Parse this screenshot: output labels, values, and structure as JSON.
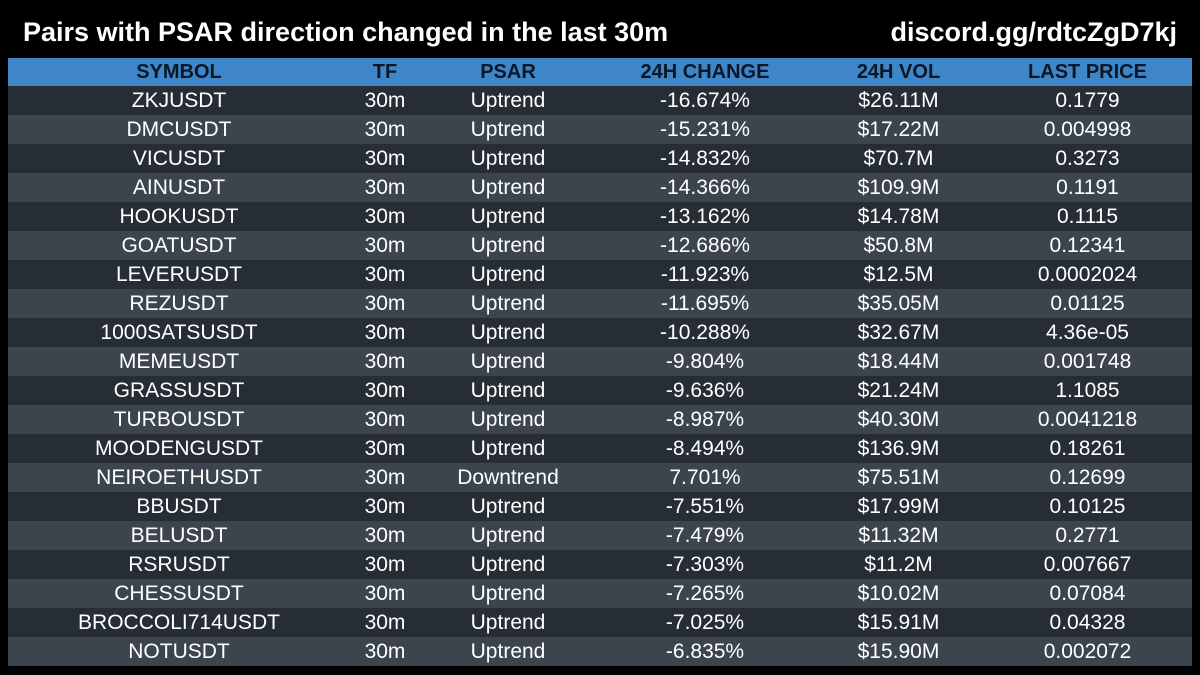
{
  "header": {
    "title": "Pairs with PSAR direction changed in the last 30m",
    "invite": "discord.gg/rdtcZgD7kj"
  },
  "table": {
    "columns": [
      "SYMBOL",
      "TF",
      "PSAR",
      "24H CHANGE",
      "24H VOL",
      "LAST PRICE"
    ],
    "rows": [
      {
        "symbol": "ZKJUSDT",
        "tf": "30m",
        "psar": "Uptrend",
        "change": "-16.674%",
        "vol": "$26.11M",
        "last": "0.1779"
      },
      {
        "symbol": "DMCUSDT",
        "tf": "30m",
        "psar": "Uptrend",
        "change": "-15.231%",
        "vol": "$17.22M",
        "last": "0.004998"
      },
      {
        "symbol": "VICUSDT",
        "tf": "30m",
        "psar": "Uptrend",
        "change": "-14.832%",
        "vol": "$70.7M",
        "last": "0.3273"
      },
      {
        "symbol": "AINUSDT",
        "tf": "30m",
        "psar": "Uptrend",
        "change": "-14.366%",
        "vol": "$109.9M",
        "last": "0.1191"
      },
      {
        "symbol": "HOOKUSDT",
        "tf": "30m",
        "psar": "Uptrend",
        "change": "-13.162%",
        "vol": "$14.78M",
        "last": "0.1115"
      },
      {
        "symbol": "GOATUSDT",
        "tf": "30m",
        "psar": "Uptrend",
        "change": "-12.686%",
        "vol": "$50.8M",
        "last": "0.12341"
      },
      {
        "symbol": "LEVERUSDT",
        "tf": "30m",
        "psar": "Uptrend",
        "change": "-11.923%",
        "vol": "$12.5M",
        "last": "0.0002024"
      },
      {
        "symbol": "REZUSDT",
        "tf": "30m",
        "psar": "Uptrend",
        "change": "-11.695%",
        "vol": "$35.05M",
        "last": "0.01125"
      },
      {
        "symbol": "1000SATSUSDT",
        "tf": "30m",
        "psar": "Uptrend",
        "change": "-10.288%",
        "vol": "$32.67M",
        "last": "4.36e-05"
      },
      {
        "symbol": "MEMEUSDT",
        "tf": "30m",
        "psar": "Uptrend",
        "change": "-9.804%",
        "vol": "$18.44M",
        "last": "0.001748"
      },
      {
        "symbol": "GRASSUSDT",
        "tf": "30m",
        "psar": "Uptrend",
        "change": "-9.636%",
        "vol": "$21.24M",
        "last": "1.1085"
      },
      {
        "symbol": "TURBOUSDT",
        "tf": "30m",
        "psar": "Uptrend",
        "change": "-8.987%",
        "vol": "$40.30M",
        "last": "0.0041218"
      },
      {
        "symbol": "MOODENGUSDT",
        "tf": "30m",
        "psar": "Uptrend",
        "change": "-8.494%",
        "vol": "$136.9M",
        "last": "0.18261"
      },
      {
        "symbol": "NEIROETHUSDT",
        "tf": "30m",
        "psar": "Downtrend",
        "change": "7.701%",
        "vol": "$75.51M",
        "last": "0.12699"
      },
      {
        "symbol": "BBUSDT",
        "tf": "30m",
        "psar": "Uptrend",
        "change": "-7.551%",
        "vol": "$17.99M",
        "last": "0.10125"
      },
      {
        "symbol": "BELUSDT",
        "tf": "30m",
        "psar": "Uptrend",
        "change": "-7.479%",
        "vol": "$11.32M",
        "last": "0.2771"
      },
      {
        "symbol": "RSRUSDT",
        "tf": "30m",
        "psar": "Uptrend",
        "change": "-7.303%",
        "vol": "$11.2M",
        "last": "0.007667"
      },
      {
        "symbol": "CHESSUSDT",
        "tf": "30m",
        "psar": "Uptrend",
        "change": "-7.265%",
        "vol": "$10.02M",
        "last": "0.07084"
      },
      {
        "symbol": "BROCCOLI714USDT",
        "tf": "30m",
        "psar": "Uptrend",
        "change": "-7.025%",
        "vol": "$15.91M",
        "last": "0.04328"
      },
      {
        "symbol": "NOTUSDT",
        "tf": "30m",
        "psar": "Uptrend",
        "change": "-6.835%",
        "vol": "$15.90M",
        "last": "0.002072"
      }
    ]
  },
  "colors": {
    "background": "#000000",
    "header_row": "#3f86c8",
    "row_dark": "#262d35",
    "row_light": "#3c444d",
    "text": "#ffffff"
  }
}
